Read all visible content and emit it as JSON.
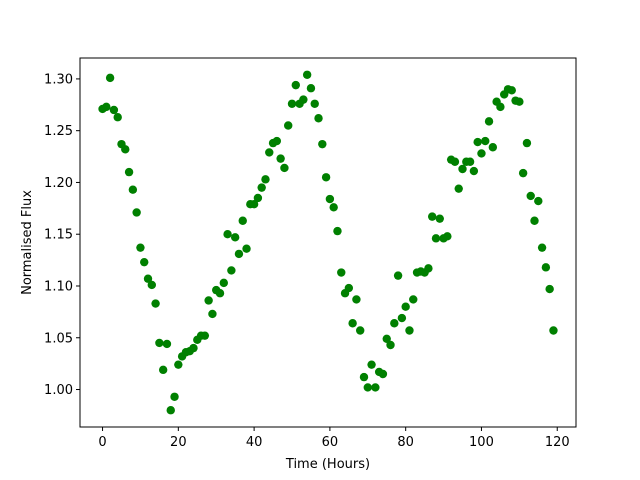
{
  "chart_data": {
    "type": "scatter",
    "x_label": "Time (Hours)",
    "y_label": "Normalised Flux",
    "color": "#008000",
    "grid": false,
    "xlim": [
      -5.95,
      124.95
    ],
    "ylim": [
      0.9638,
      1.3202
    ],
    "xticks": [
      0,
      20,
      40,
      60,
      80,
      100,
      120
    ],
    "yticks": [
      {
        "value": 1.0,
        "label": "1.00"
      },
      1.05,
      {
        "value": 1.1,
        "label": "1.10"
      },
      1.15,
      {
        "value": 1.2,
        "label": "1.20"
      },
      1.25,
      {
        "value": 1.3,
        "label": "1.30"
      }
    ],
    "x": [
      0,
      1,
      2,
      3,
      4,
      5,
      6,
      7,
      8,
      9,
      10,
      11,
      12,
      13,
      14,
      15,
      16,
      17,
      18,
      19,
      20,
      21,
      22,
      23,
      24,
      25,
      26,
      27,
      28,
      29,
      30,
      31,
      32,
      33,
      34,
      35,
      36,
      37,
      38,
      39,
      40,
      41,
      42,
      43,
      44,
      45,
      46,
      47,
      48,
      49,
      50,
      51,
      52,
      53,
      54,
      55,
      56,
      57,
      58,
      59,
      60,
      61,
      62,
      63,
      64,
      65,
      66,
      67,
      68,
      69,
      70,
      71,
      72,
      73,
      74,
      75,
      76,
      77,
      78,
      79,
      80,
      81,
      82,
      83,
      84,
      85,
      86,
      87,
      88,
      89,
      90,
      91,
      92,
      93,
      94,
      95,
      96,
      97,
      98,
      99,
      100,
      101,
      102,
      103,
      104,
      105,
      106,
      107,
      108,
      109,
      110,
      111,
      112,
      113,
      114,
      115,
      116,
      117,
      118,
      119
    ],
    "values": [
      1.271,
      1.273,
      1.301,
      1.27,
      1.263,
      1.237,
      1.232,
      1.21,
      1.193,
      1.171,
      1.137,
      1.123,
      1.107,
      1.101,
      1.083,
      1.045,
      1.019,
      1.044,
      0.98,
      0.993,
      1.024,
      1.032,
      1.036,
      1.037,
      1.04,
      1.048,
      1.052,
      1.052,
      1.086,
      1.073,
      1.096,
      1.093,
      1.103,
      1.15,
      1.115,
      1.147,
      1.131,
      1.163,
      1.136,
      1.179,
      1.179,
      1.185,
      1.195,
      1.203,
      1.229,
      1.238,
      1.24,
      1.223,
      1.214,
      1.255,
      1.276,
      1.294,
      1.276,
      1.28,
      1.304,
      1.291,
      1.276,
      1.262,
      1.237,
      1.205,
      1.184,
      1.176,
      1.153,
      1.113,
      1.093,
      1.098,
      1.064,
      1.087,
      1.057,
      1.012,
      1.002,
      1.024,
      1.002,
      1.017,
      1.015,
      1.049,
      1.043,
      1.064,
      1.11,
      1.069,
      1.08,
      1.057,
      1.087,
      1.113,
      1.114,
      1.113,
      1.117,
      1.167,
      1.146,
      1.165,
      1.146,
      1.148,
      1.222,
      1.22,
      1.194,
      1.213,
      1.22,
      1.22,
      1.211,
      1.239,
      1.228,
      1.24,
      1.259,
      1.234,
      1.278,
      1.273,
      1.285,
      1.29,
      1.289,
      1.279,
      1.278,
      1.209,
      1.238,
      1.187,
      1.163,
      1.182,
      1.137,
      1.118,
      1.097,
      1.057
    ]
  }
}
